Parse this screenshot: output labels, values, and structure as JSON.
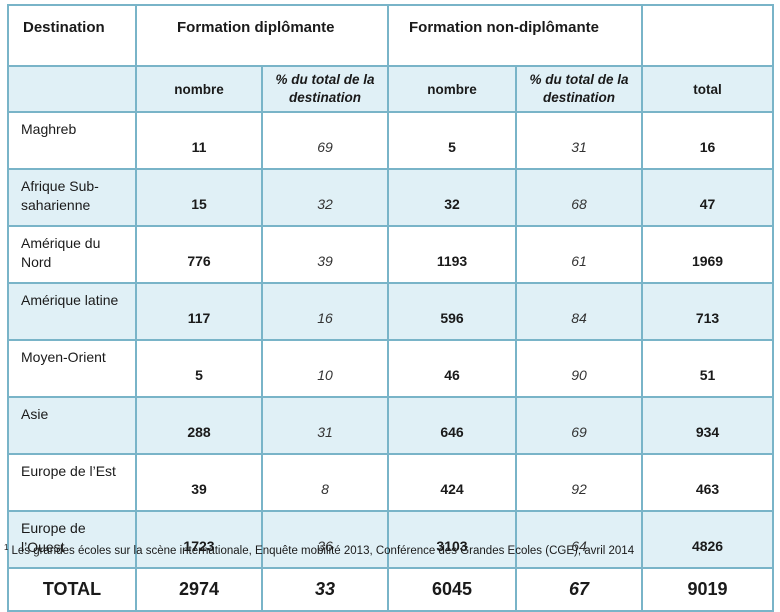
{
  "header": {
    "destination": "Destination",
    "diplomante": "Formation diplômante",
    "non_diplomante": "Formation non-diplômante"
  },
  "subheader": {
    "nombre": "nombre",
    "pct": "% du total de la destination",
    "total": "total"
  },
  "rows": [
    {
      "dest": "Maghreb",
      "dip_n": "11",
      "dip_pct": "69",
      "non_n": "5",
      "non_pct": "31",
      "total": "16"
    },
    {
      "dest": "Afrique Sub-saharienne",
      "dip_n": "15",
      "dip_pct": "32",
      "non_n": "32",
      "non_pct": "68",
      "total": "47"
    },
    {
      "dest": "Amérique du Nord",
      "dip_n": "776",
      "dip_pct": "39",
      "non_n": "1193",
      "non_pct": "61",
      "total": "1969"
    },
    {
      "dest": "Amérique latine",
      "dip_n": "117",
      "dip_pct": "16",
      "non_n": "596",
      "non_pct": "84",
      "total": "713"
    },
    {
      "dest": "Moyen-Orient",
      "dip_n": "5",
      "dip_pct": "10",
      "non_n": "46",
      "non_pct": "90",
      "total": "51"
    },
    {
      "dest": "Asie",
      "dip_n": "288",
      "dip_pct": "31",
      "non_n": "646",
      "non_pct": "69",
      "total": "934"
    },
    {
      "dest": "Europe de l’Est",
      "dip_n": "39",
      "dip_pct": "8",
      "non_n": "424",
      "non_pct": "92",
      "total": "463"
    },
    {
      "dest": "Europe de l’Ouest",
      "dip_n": "1723",
      "dip_pct": "36",
      "non_n": "3103",
      "non_pct": "64",
      "total": "4826"
    }
  ],
  "totals": {
    "label": "TOTAL",
    "dip_n": "2974",
    "dip_pct": "33",
    "non_n": "6045",
    "non_pct": "67",
    "total": "9019"
  },
  "footnote": {
    "marker": "1",
    "text": "Les grandes écoles sur la scène internationale, Enquête mobilité 2013, Conférence des Grandes Ecoles (CGE), avril 2014"
  }
}
